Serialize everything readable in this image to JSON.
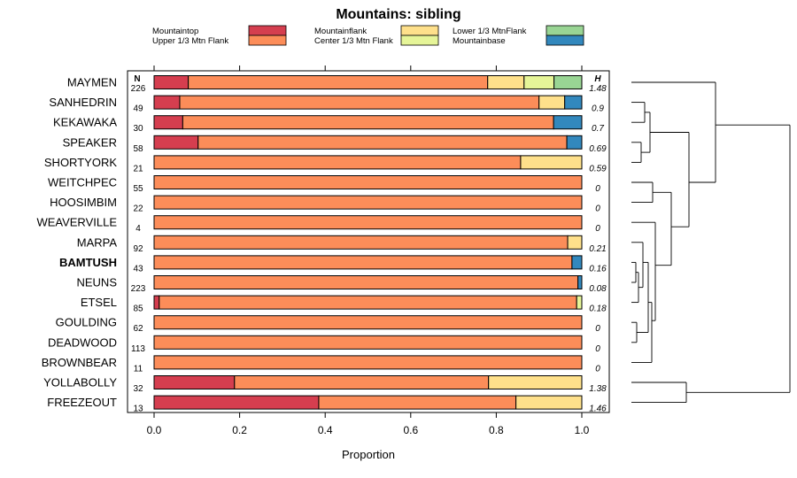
{
  "chart_data": {
    "type": "stacked-bar",
    "title": "Mountains: sibling",
    "xlabel": "Proportion",
    "xlim": [
      0,
      1
    ],
    "xticks": [
      "0.0",
      "0.2",
      "0.4",
      "0.6",
      "0.8",
      "1.0"
    ],
    "n_header": "N",
    "h_header": "H",
    "series": [
      {
        "name": "Mountaintop",
        "color": "#D53E4F"
      },
      {
        "name": "Upper 1/3 Mtn Flank",
        "color": "#FC8D59"
      },
      {
        "name": "Mountainflank",
        "color": "#FEE08B"
      },
      {
        "name": "Center 1/3 Mtn Flank",
        "color": "#E6F598"
      },
      {
        "name": "Lower 1/3 MtnFlank",
        "color": "#99D594"
      },
      {
        "name": "Mountainbase",
        "color": "#3288BD"
      }
    ],
    "rows": [
      {
        "name": "MAYMEN",
        "n": "226",
        "h": "1.48",
        "bold": false,
        "values": [
          0.08,
          0.7,
          0.085,
          0.07,
          0.065,
          0.0
        ]
      },
      {
        "name": "SANHEDRIN",
        "n": "49",
        "h": "0.9",
        "bold": false,
        "values": [
          0.06,
          0.84,
          0.06,
          0.0,
          0.0,
          0.04
        ]
      },
      {
        "name": "KEKAWAKA",
        "n": "30",
        "h": "0.7",
        "bold": false,
        "values": [
          0.067,
          0.867,
          0.0,
          0.0,
          0.0,
          0.066
        ]
      },
      {
        "name": "SPEAKER",
        "n": "58",
        "h": "0.69",
        "bold": false,
        "values": [
          0.103,
          0.862,
          0.0,
          0.0,
          0.0,
          0.035
        ]
      },
      {
        "name": "SHORTYORK",
        "n": "21",
        "h": "0.59",
        "bold": false,
        "values": [
          0.0,
          0.857,
          0.143,
          0.0,
          0.0,
          0.0
        ]
      },
      {
        "name": "WEITCHPEC",
        "n": "55",
        "h": "0",
        "bold": false,
        "values": [
          0.0,
          1.0,
          0.0,
          0.0,
          0.0,
          0.0
        ]
      },
      {
        "name": "HOOSIMBIM",
        "n": "22",
        "h": "0",
        "bold": false,
        "values": [
          0.0,
          1.0,
          0.0,
          0.0,
          0.0,
          0.0
        ]
      },
      {
        "name": "WEAVERVILLE",
        "n": "4",
        "h": "0",
        "bold": false,
        "values": [
          0.0,
          1.0,
          0.0,
          0.0,
          0.0,
          0.0
        ]
      },
      {
        "name": "MARPA",
        "n": "92",
        "h": "0.21",
        "bold": false,
        "values": [
          0.0,
          0.967,
          0.033,
          0.0,
          0.0,
          0.0
        ]
      },
      {
        "name": "BAMTUSH",
        "n": "43",
        "h": "0.16",
        "bold": true,
        "values": [
          0.0,
          0.977,
          0.0,
          0.0,
          0.0,
          0.023
        ]
      },
      {
        "name": "NEUNS",
        "n": "223",
        "h": "0.08",
        "bold": false,
        "values": [
          0.0,
          0.991,
          0.0,
          0.0,
          0.0,
          0.009
        ]
      },
      {
        "name": "ETSEL",
        "n": "85",
        "h": "0.18",
        "bold": false,
        "values": [
          0.012,
          0.976,
          0.0,
          0.012,
          0.0,
          0.0
        ]
      },
      {
        "name": "GOULDING",
        "n": "62",
        "h": "0",
        "bold": false,
        "values": [
          0.0,
          1.0,
          0.0,
          0.0,
          0.0,
          0.0
        ]
      },
      {
        "name": "DEADWOOD",
        "n": "113",
        "h": "0",
        "bold": false,
        "values": [
          0.0,
          1.0,
          0.0,
          0.0,
          0.0,
          0.0
        ]
      },
      {
        "name": "BROWNBEAR",
        "n": "11",
        "h": "0",
        "bold": false,
        "values": [
          0.0,
          1.0,
          0.0,
          0.0,
          0.0,
          0.0
        ]
      },
      {
        "name": "YOLLABOLLY",
        "n": "32",
        "h": "1.38",
        "bold": false,
        "values": [
          0.188,
          0.594,
          0.218,
          0.0,
          0.0,
          0.0
        ]
      },
      {
        "name": "FREEZEOUT",
        "n": "13",
        "h": "1.46",
        "bold": false,
        "values": [
          0.385,
          0.461,
          0.154,
          0.0,
          0.0,
          0.0
        ]
      }
    ]
  }
}
